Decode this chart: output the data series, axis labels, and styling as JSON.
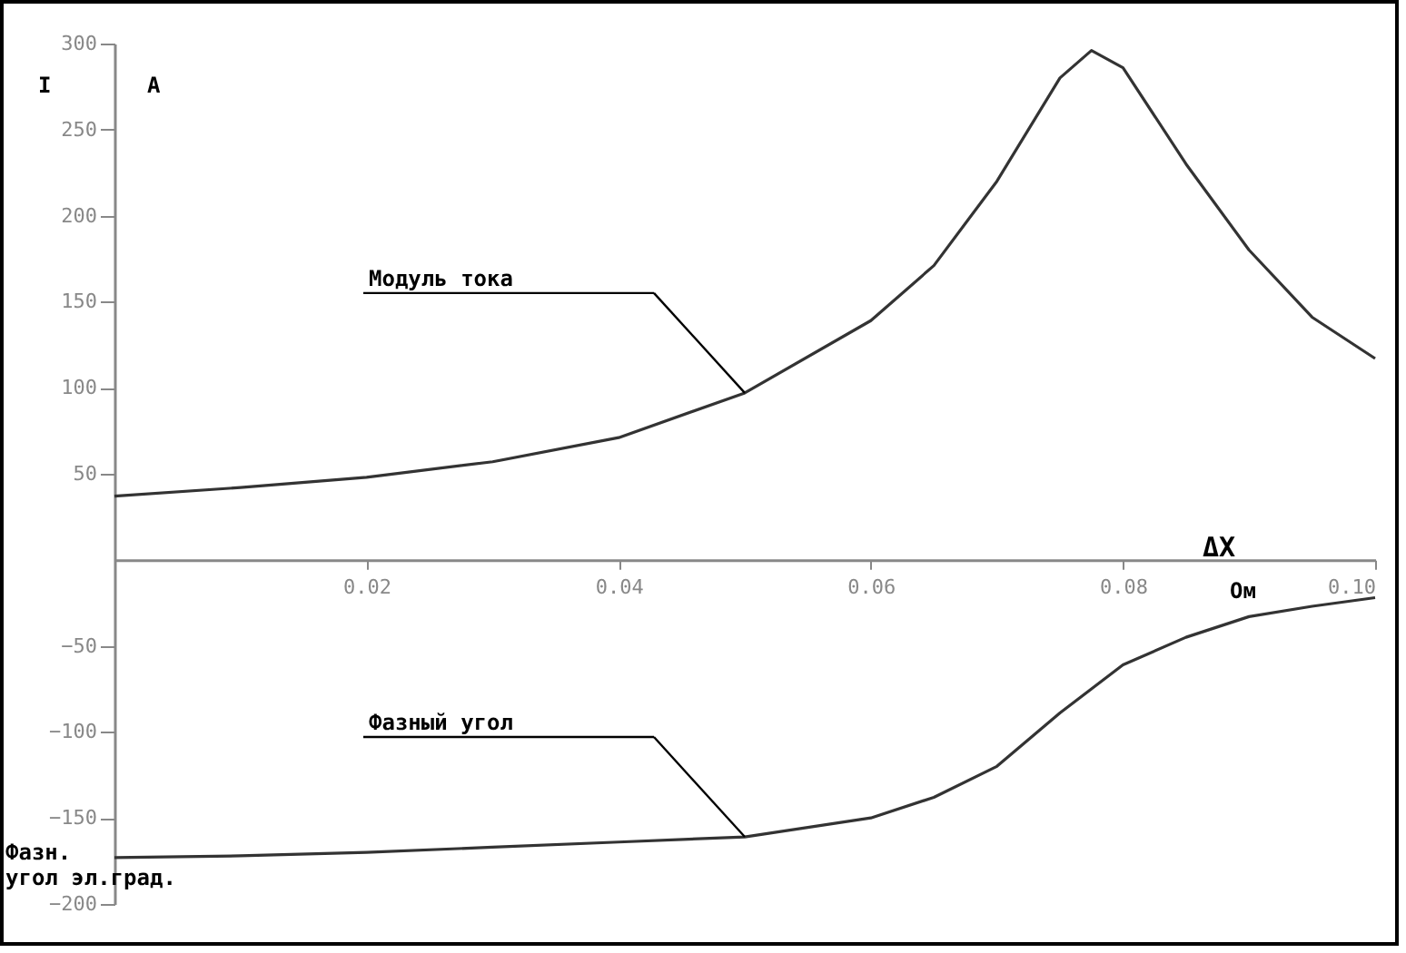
{
  "chart_data": {
    "type": "line",
    "ylabel": "I",
    "xlabel": "ΔX",
    "annotations": [
      "A",
      "Фазн. угол эл.град.",
      "Ом",
      "Модуль тока",
      "Фазный угол"
    ],
    "x": [
      0,
      0.01,
      0.02,
      0.03,
      0.04,
      0.05,
      0.06,
      0.065,
      0.07,
      0.075,
      0.0775,
      0.08,
      0.085,
      0.09,
      0.095,
      0.1
    ],
    "series": [
      {
        "color": "#333333",
        "values": [
          37,
          42,
          48,
          57,
          71,
          97,
          139,
          171,
          220,
          280,
          296,
          286,
          230,
          180,
          141,
          117
        ]
      },
      {
        "color": "#333333",
        "values": [
          -173,
          -172,
          -170,
          -167,
          -164,
          -161,
          -150,
          -138,
          -120,
          -89,
          -75,
          -61,
          -45,
          -33,
          -27,
          -22
        ]
      }
    ],
    "xlim": [
      0,
      0.1
    ],
    "xticks": [
      0.02,
      0.04,
      0.06,
      0.08,
      {
        "value": 0.1,
        "label": "0.10"
      }
    ],
    "ylim": [
      -200,
      300
    ],
    "yticks": [
      -200,
      -150,
      -100,
      -50,
      50,
      100,
      150,
      200,
      250,
      300
    ],
    "grid": false,
    "legend": false,
    "marker": "none",
    "line_style": "solid"
  }
}
